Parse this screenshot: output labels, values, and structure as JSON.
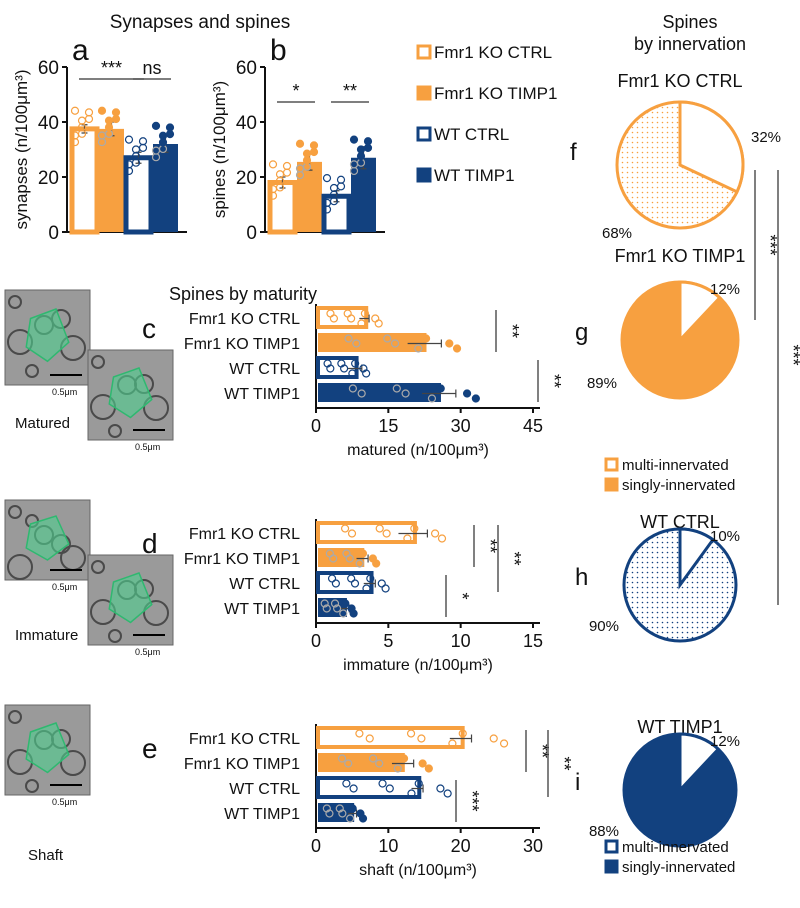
{
  "titles": {
    "top": "Synapses and spines",
    "maturity": "Spines by maturity",
    "pies_line1": "Spines",
    "pies_line2": "by innervation"
  },
  "colors": {
    "orange": "#f7a040",
    "blue": "#12417f",
    "gray": "#555555",
    "green": "#4fd18f"
  },
  "groups": [
    "Fmr1 KO CTRL",
    "Fmr1 KO TIMP1",
    "WT CTRL",
    "WT TIMP1"
  ],
  "legend": [
    {
      "label": "Fmr1 KO CTRL",
      "color": "#f7a040",
      "filled": false
    },
    {
      "label": "Fmr1 KO TIMP1",
      "color": "#f7a040",
      "filled": true
    },
    {
      "label": "WT CTRL",
      "color": "#12417f",
      "filled": false
    },
    {
      "label": "WT TIMP1",
      "color": "#12417f",
      "filled": true
    }
  ],
  "images": [
    {
      "label": "Matured",
      "scale": "0.5μm"
    },
    {
      "label": "Immature",
      "scale": "0.5μm"
    },
    {
      "label": "Shaft",
      "scale": "0.5μm"
    }
  ],
  "chart_data": [
    {
      "panel": "a",
      "type": "bar",
      "ylabel": "synapses (n/100μm³)",
      "ylim": [
        0,
        60
      ],
      "ticks": [
        0,
        20,
        40,
        60
      ],
      "values": [
        37.5,
        37.5,
        27,
        32
      ],
      "errors": [
        1.5,
        2.5,
        2,
        3
      ],
      "sig": [
        {
          "label": "***",
          "from": 0,
          "to": 2
        },
        {
          "label": "ns",
          "from": 2,
          "to": 3
        }
      ]
    },
    {
      "panel": "b",
      "type": "bar",
      "ylabel": "spines (n/100μm³)",
      "ylim": [
        0,
        60
      ],
      "ticks": [
        0,
        20,
        40,
        60
      ],
      "values": [
        18,
        25.5,
        13,
        27
      ],
      "errors": [
        2,
        3,
        2,
        4
      ],
      "sig": [
        {
          "label": "*",
          "from": 0,
          "to": 1
        },
        {
          "label": "**",
          "from": 2,
          "to": 3
        }
      ]
    },
    {
      "panel": "c",
      "type": "bar",
      "orientation": "horizontal",
      "xlabel": "matured (n/100μm³)",
      "xlim": [
        0,
        47
      ],
      "ticks": [
        0,
        15,
        30,
        45
      ],
      "values": [
        10,
        22.5,
        8,
        25.5
      ],
      "errors": [
        1,
        3.5,
        1.5,
        3.5
      ],
      "sig": [
        {
          "label": "**",
          "from": 0,
          "to": 1
        },
        {
          "label": "**",
          "from": 2,
          "to": 3
        }
      ]
    },
    {
      "panel": "d",
      "type": "bar",
      "orientation": "horizontal",
      "xlabel": "immature (n/100μm³)",
      "xlim": [
        0,
        15
      ],
      "ticks": [
        0,
        5,
        10,
        15
      ],
      "values": [
        6.7,
        3.2,
        3.7,
        2
      ],
      "errors": [
        1,
        0.4,
        0.4,
        0.3
      ],
      "sig": [
        {
          "label": "**",
          "from": 0,
          "to": 1
        },
        {
          "label": "**",
          "from": 0,
          "to": 2
        },
        {
          "label": "*",
          "from": 2,
          "to": 3
        }
      ]
    },
    {
      "panel": "e",
      "type": "bar",
      "orientation": "horizontal",
      "xlabel": "shaft (n/100μm³)",
      "xlim": [
        0,
        35
      ],
      "ticks": [
        0,
        10,
        20,
        30
      ],
      "values": [
        20,
        12,
        14,
        5
      ],
      "errors": [
        1.5,
        1.5,
        0.8,
        0.6
      ],
      "sig": [
        {
          "label": "**",
          "from": 0,
          "to": 1
        },
        {
          "label": "**",
          "from": 0,
          "to": 2
        },
        {
          "label": "***",
          "from": 2,
          "to": 3
        }
      ]
    },
    {
      "panel": "f",
      "type": "pie",
      "title": "Fmr1 KO CTRL",
      "multi": 32,
      "single": 68,
      "color": "#f7a040",
      "pattern": true
    },
    {
      "panel": "g",
      "type": "pie",
      "title": "Fmr1 KO TIMP1",
      "multi": 12,
      "single": 89,
      "color": "#f7a040",
      "pattern": false
    },
    {
      "panel": "h",
      "type": "pie",
      "title": "WT CTRL",
      "multi": 10,
      "single": 90,
      "color": "#12417f",
      "pattern": true
    },
    {
      "panel": "i",
      "type": "pie",
      "title": "WT TIMP1",
      "multi": 12,
      "single": 88,
      "color": "#12417f",
      "pattern": false
    }
  ],
  "pie_legends": [
    {
      "multi": "multi-innervated",
      "single": "singly-innervated",
      "color": "#f7a040"
    },
    {
      "multi": "multi-innervated",
      "single": "singly-innervated",
      "color": "#12417f"
    }
  ],
  "pie_sig": [
    "***",
    "***"
  ]
}
